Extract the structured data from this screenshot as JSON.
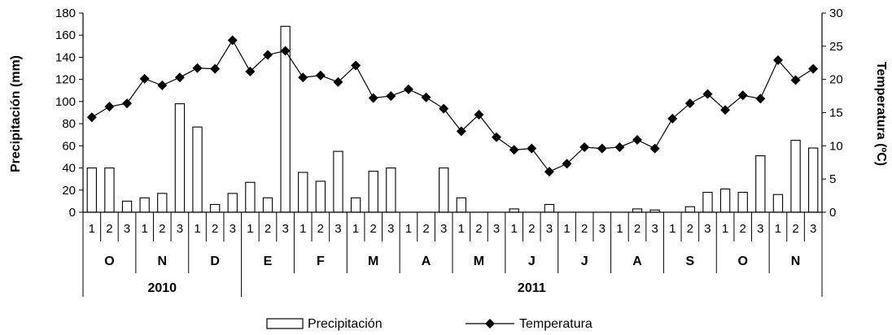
{
  "chart_data": {
    "type": "bar",
    "categories": [
      "1",
      "2",
      "3",
      "1",
      "2",
      "3",
      "1",
      "2",
      "3",
      "1",
      "2",
      "3",
      "1",
      "2",
      "3",
      "1",
      "2",
      "3",
      "1",
      "2",
      "3",
      "1",
      "2",
      "3",
      "1",
      "2",
      "3",
      "1",
      "2",
      "3",
      "1",
      "2",
      "3",
      "1",
      "2",
      "3",
      "1",
      "2",
      "3",
      "1",
      "2",
      "3"
    ],
    "months": [
      {
        "label": "O",
        "start": 0
      },
      {
        "label": "N",
        "start": 3
      },
      {
        "label": "D",
        "start": 6
      },
      {
        "label": "E",
        "start": 9
      },
      {
        "label": "F",
        "start": 12
      },
      {
        "label": "M",
        "start": 15
      },
      {
        "label": "A",
        "start": 18
      },
      {
        "label": "M",
        "start": 21
      },
      {
        "label": "J",
        "start": 24
      },
      {
        "label": "J",
        "start": 27
      },
      {
        "label": "A",
        "start": 30
      },
      {
        "label": "S",
        "start": 33
      },
      {
        "label": "O",
        "start": 36
      },
      {
        "label": "N",
        "start": 39
      }
    ],
    "years": [
      {
        "label": "2010",
        "start": 0,
        "end": 9
      },
      {
        "label": "2011",
        "start": 9,
        "end": 42
      }
    ],
    "series": [
      {
        "name": "Precipitación",
        "type": "bar",
        "axis": "left",
        "values": [
          40,
          40,
          10,
          13,
          17,
          98,
          77,
          7,
          17,
          27,
          13,
          168,
          36,
          28,
          55,
          13,
          37,
          40,
          0,
          0,
          40,
          13,
          0,
          0,
          3,
          0,
          7,
          0,
          0,
          0,
          0,
          3,
          2,
          0,
          5,
          18,
          21,
          18,
          51,
          16,
          65,
          58
        ]
      },
      {
        "name": "Temperatura",
        "type": "line",
        "axis": "right",
        "values": [
          14.3,
          15.9,
          16.4,
          20.1,
          19.1,
          20.3,
          21.7,
          21.6,
          25.9,
          21.2,
          23.7,
          24.3,
          20.3,
          20.6,
          19.6,
          22.1,
          17.2,
          17.5,
          18.5,
          17.3,
          15.6,
          12.2,
          14.7,
          11.3,
          9.4,
          9.6,
          6.1,
          7.3,
          9.8,
          9.6,
          9.8,
          10.9,
          9.6,
          14.1,
          16.4,
          17.8,
          15.4,
          17.6,
          17.1,
          22.9,
          19.9,
          21.6
        ]
      }
    ],
    "ylabel": "Precipitación (mm)",
    "ylabel_right": "Temperatura (ºC)",
    "ylim": [
      0,
      180
    ],
    "ylim_right": [
      0,
      30
    ],
    "yticks": [
      "0",
      "20",
      "40",
      "60",
      "80",
      "100",
      "120",
      "140",
      "160",
      "180"
    ],
    "yticks_right": [
      "0",
      "5",
      "10",
      "15",
      "20",
      "25",
      "30"
    ],
    "legend_position": "bottom",
    "grid": false
  }
}
